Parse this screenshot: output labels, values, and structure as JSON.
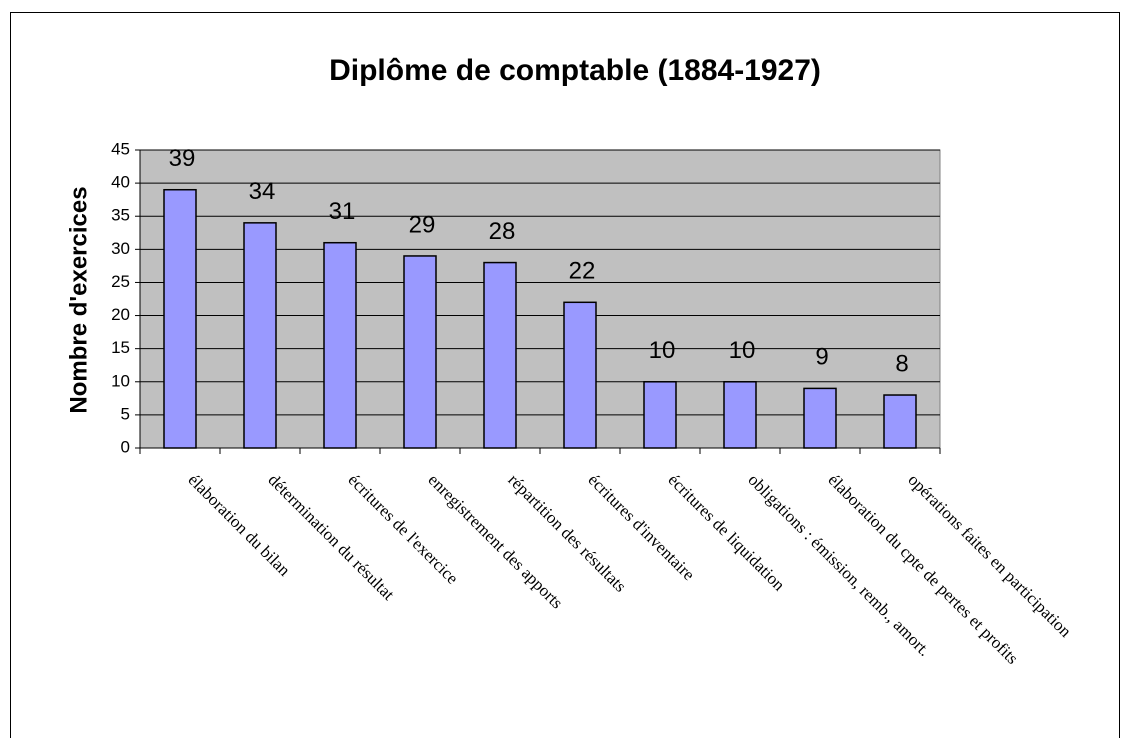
{
  "chart_data": {
    "type": "bar",
    "title": "Diplôme de comptable (1884-1927)",
    "y_label": "Nombre d'exercices",
    "categories": [
      "élaboration du bilan",
      "détermination du résultat",
      "écritures de l'exercice",
      "enregistrement des apports",
      "répartition des résultats",
      "écritures d'inventaire",
      "écritures de liquidation",
      "obligations : émission, remb., amort.",
      "élaboration du cpte de pertes et profits",
      "opérations faites en participation"
    ],
    "values": [
      39,
      34,
      31,
      29,
      28,
      22,
      10,
      10,
      9,
      8
    ],
    "color": "#9999ff",
    "ylim": [
      0,
      45
    ],
    "yticks": [
      0,
      5,
      10,
      15,
      20,
      25,
      30,
      35,
      40,
      45
    ],
    "grid": true
  }
}
